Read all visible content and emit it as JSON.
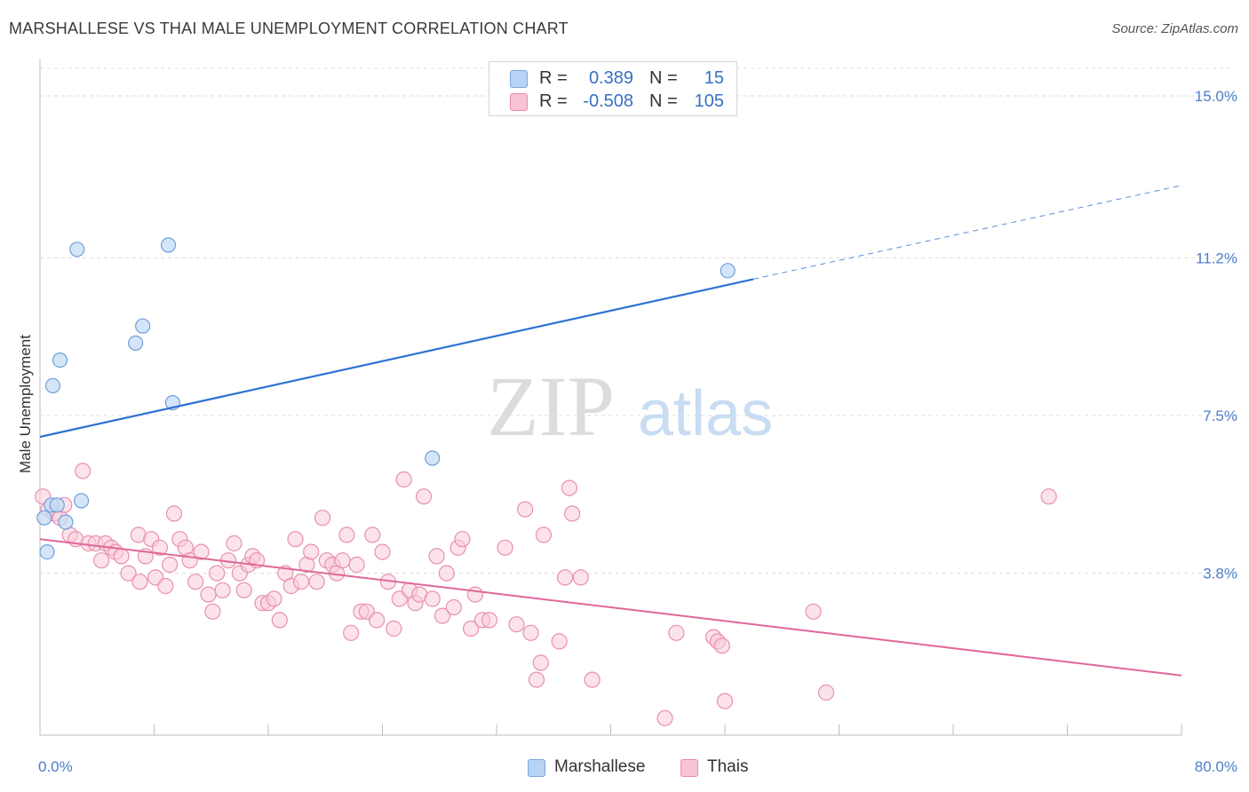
{
  "header": {
    "title": "MARSHALLESE VS THAI MALE UNEMPLOYMENT CORRELATION CHART",
    "source": "Source: ZipAtlas.com"
  },
  "watermark": {
    "zip": "ZIP",
    "atlas": "atlas"
  },
  "legend_top": {
    "rows": [
      {
        "r_label": "R =",
        "r_value": "0.389",
        "n_label": "N =",
        "n_value": "15",
        "color": "#b8d3f5",
        "border": "#7aa6dd"
      },
      {
        "r_label": "R =",
        "r_value": "-0.508",
        "n_label": "N =",
        "n_value": "105",
        "color": "#f8c4d4",
        "border": "#e88aa8"
      }
    ]
  },
  "legend_bottom": {
    "items": [
      {
        "label": "Marshallese",
        "color": "#b8d3f5",
        "border": "#7aa6dd"
      },
      {
        "label": "Thais",
        "color": "#f8c4d4",
        "border": "#e88aa8"
      }
    ]
  },
  "colors": {
    "marshallese_fill": "#c5dcf6",
    "marshallese_stroke": "#6f9fd8",
    "marshallese_line": "#2e72d2",
    "thai_fill": "#f9ccdb",
    "thai_stroke": "#e890ad",
    "thai_line": "#e0679a",
    "tick_label": "#4a7fc8",
    "grid": "#dcdcdc"
  },
  "chart_data": {
    "type": "scatter",
    "title": "MARSHALLESE VS THAI MALE UNEMPLOYMENT CORRELATION CHART",
    "xlabel": "",
    "ylabel": "Male Unemployment",
    "xlim": [
      0,
      80
    ],
    "ylim": [
      0,
      15.75
    ],
    "x_tick_labels": [
      "0.0%",
      "80.0%"
    ],
    "y_ticks": [
      3.8,
      7.5,
      11.2,
      15.0
    ],
    "y_tick_labels": [
      "3.8%",
      "7.5%",
      "11.2%",
      "15.0%"
    ],
    "x_minor_ticks": [
      0,
      8,
      16,
      24,
      32,
      40,
      48,
      56,
      64,
      72,
      80
    ],
    "grid": true,
    "legend_position": "top-center",
    "series": [
      {
        "name": "Marshallese",
        "r": 0.389,
        "n": 15,
        "points": [
          [
            0.3,
            5.1
          ],
          [
            0.5,
            4.3
          ],
          [
            0.8,
            5.4
          ],
          [
            1.2,
            5.4
          ],
          [
            1.8,
            5.0
          ],
          [
            0.9,
            8.2
          ],
          [
            1.4,
            8.8
          ],
          [
            2.6,
            11.4
          ],
          [
            2.9,
            5.5
          ],
          [
            6.7,
            9.2
          ],
          [
            7.2,
            9.6
          ],
          [
            9.0,
            11.5
          ],
          [
            9.3,
            7.8
          ],
          [
            27.5,
            6.5
          ],
          [
            48.2,
            10.9
          ]
        ],
        "trend": {
          "x0": 0,
          "y0": 7.0,
          "x1": 50,
          "y1": 10.7,
          "x_dash_end": 80,
          "y_dash_end": 12.9
        }
      },
      {
        "name": "Thais",
        "r": -0.508,
        "n": 105,
        "points": [
          [
            0.2,
            5.6
          ],
          [
            0.6,
            5.3
          ],
          [
            1.0,
            5.2
          ],
          [
            1.4,
            5.1
          ],
          [
            1.7,
            5.4
          ],
          [
            2.1,
            4.7
          ],
          [
            2.5,
            4.6
          ],
          [
            3.0,
            6.2
          ],
          [
            3.4,
            4.5
          ],
          [
            3.9,
            4.5
          ],
          [
            4.3,
            4.1
          ],
          [
            4.6,
            4.5
          ],
          [
            5.0,
            4.4
          ],
          [
            5.3,
            4.3
          ],
          [
            5.7,
            4.2
          ],
          [
            6.2,
            3.8
          ],
          [
            6.9,
            4.7
          ],
          [
            7.0,
            3.6
          ],
          [
            7.4,
            4.2
          ],
          [
            7.8,
            4.6
          ],
          [
            8.1,
            3.7
          ],
          [
            8.4,
            4.4
          ],
          [
            8.8,
            3.5
          ],
          [
            9.1,
            4.0
          ],
          [
            9.4,
            5.2
          ],
          [
            9.8,
            4.6
          ],
          [
            10.2,
            4.4
          ],
          [
            10.5,
            4.1
          ],
          [
            10.9,
            3.6
          ],
          [
            11.3,
            4.3
          ],
          [
            11.8,
            3.3
          ],
          [
            12.1,
            2.9
          ],
          [
            12.4,
            3.8
          ],
          [
            12.8,
            3.4
          ],
          [
            13.2,
            4.1
          ],
          [
            13.6,
            4.5
          ],
          [
            14.0,
            3.8
          ],
          [
            14.3,
            3.4
          ],
          [
            14.6,
            4.0
          ],
          [
            14.9,
            4.2
          ],
          [
            15.2,
            4.1
          ],
          [
            15.6,
            3.1
          ],
          [
            16.0,
            3.1
          ],
          [
            16.4,
            3.2
          ],
          [
            16.8,
            2.7
          ],
          [
            17.2,
            3.8
          ],
          [
            17.6,
            3.5
          ],
          [
            17.9,
            4.6
          ],
          [
            18.3,
            3.6
          ],
          [
            18.7,
            4.0
          ],
          [
            19.0,
            4.3
          ],
          [
            19.4,
            3.6
          ],
          [
            19.8,
            5.1
          ],
          [
            20.1,
            4.1
          ],
          [
            20.5,
            4.0
          ],
          [
            20.8,
            3.8
          ],
          [
            21.2,
            4.1
          ],
          [
            21.5,
            4.7
          ],
          [
            21.8,
            2.4
          ],
          [
            22.2,
            4.0
          ],
          [
            22.5,
            2.9
          ],
          [
            22.9,
            2.9
          ],
          [
            23.3,
            4.7
          ],
          [
            23.6,
            2.7
          ],
          [
            24.0,
            4.3
          ],
          [
            24.4,
            3.6
          ],
          [
            24.8,
            2.5
          ],
          [
            25.2,
            3.2
          ],
          [
            25.5,
            6.0
          ],
          [
            25.9,
            3.4
          ],
          [
            26.3,
            3.1
          ],
          [
            26.6,
            3.3
          ],
          [
            26.9,
            5.6
          ],
          [
            27.5,
            3.2
          ],
          [
            27.8,
            4.2
          ],
          [
            28.2,
            2.8
          ],
          [
            28.5,
            3.8
          ],
          [
            29.0,
            3.0
          ],
          [
            29.3,
            4.4
          ],
          [
            29.6,
            4.6
          ],
          [
            30.2,
            2.5
          ],
          [
            30.5,
            3.3
          ],
          [
            31.0,
            2.7
          ],
          [
            31.5,
            2.7
          ],
          [
            32.6,
            4.4
          ],
          [
            33.4,
            2.6
          ],
          [
            34.0,
            5.3
          ],
          [
            34.4,
            2.4
          ],
          [
            34.8,
            1.3
          ],
          [
            35.1,
            1.7
          ],
          [
            35.3,
            4.7
          ],
          [
            36.4,
            2.2
          ],
          [
            36.8,
            3.7
          ],
          [
            37.1,
            5.8
          ],
          [
            37.3,
            5.2
          ],
          [
            37.9,
            3.7
          ],
          [
            38.7,
            1.3
          ],
          [
            43.8,
            0.4
          ],
          [
            44.6,
            2.4
          ],
          [
            47.2,
            2.3
          ],
          [
            47.5,
            2.2
          ],
          [
            47.8,
            2.1
          ],
          [
            48.0,
            0.8
          ],
          [
            54.2,
            2.9
          ],
          [
            55.1,
            1.0
          ],
          [
            70.7,
            5.6
          ]
        ],
        "trend": {
          "x0": 0,
          "y0": 4.6,
          "x1": 80,
          "y1": 1.4
        }
      }
    ]
  }
}
